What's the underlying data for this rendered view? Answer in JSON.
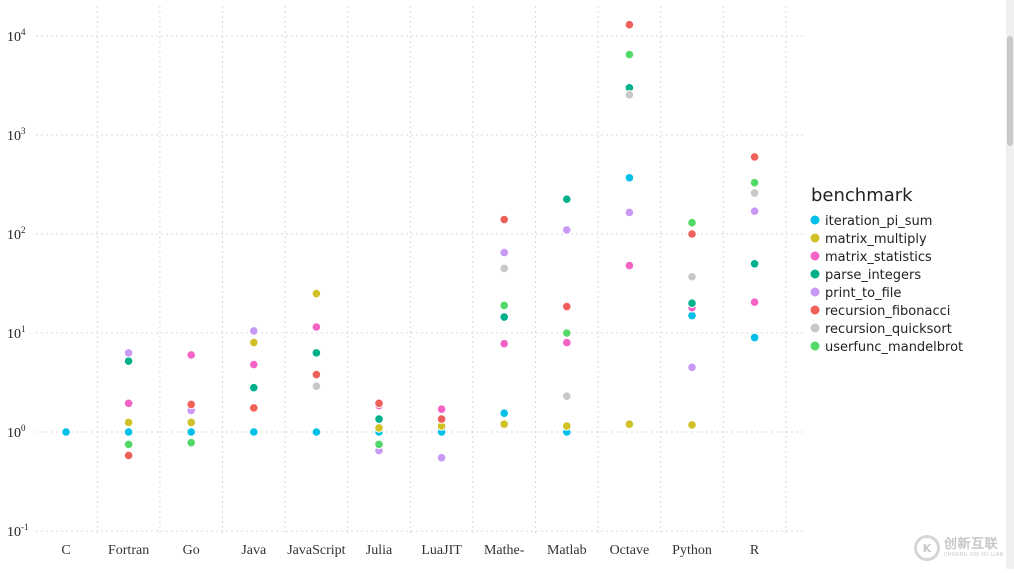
{
  "chart_data": {
    "type": "scatter",
    "title": "",
    "xlabel": "",
    "ylabel": "",
    "y_scale": "log",
    "ylim": [
      0.1,
      10000
    ],
    "y_ticks": [
      {
        "value": 0.1,
        "base": "10",
        "exp": "-1"
      },
      {
        "value": 1,
        "base": "10",
        "exp": "0"
      },
      {
        "value": 10,
        "base": "10",
        "exp": "1"
      },
      {
        "value": 100,
        "base": "10",
        "exp": "2"
      },
      {
        "value": 1000,
        "base": "10",
        "exp": "3"
      },
      {
        "value": 10000,
        "base": "10",
        "exp": "4"
      }
    ],
    "categories": [
      "C",
      "Fortran",
      "Go",
      "Java",
      "JavaScript",
      "Julia",
      "LuaJIT",
      "Mathe-",
      "Matlab",
      "Octave",
      "Python",
      "R"
    ],
    "grid": true,
    "legend": {
      "title": "benchmark",
      "position": "right"
    },
    "series": [
      {
        "name": "iteration_pi_sum",
        "color": "#00BFE8",
        "values": [
          1.0,
          1.0,
          1.0,
          1.0,
          1.0,
          1.0,
          1.0,
          1.55,
          1.0,
          370,
          15,
          9
        ]
      },
      {
        "name": "matrix_multiply",
        "color": "#CFC126",
        "values": [
          null,
          1.25,
          1.25,
          8,
          25,
          1.1,
          1.15,
          1.2,
          1.15,
          1.2,
          1.18,
          null
        ]
      },
      {
        "name": "matrix_statistics",
        "color": "#F564C5",
        "values": [
          null,
          1.95,
          6,
          4.8,
          11.5,
          1.85,
          1.7,
          7.8,
          8,
          48,
          18,
          20.5
        ]
      },
      {
        "name": "parse_integers",
        "color": "#00B08A",
        "values": [
          null,
          5.2,
          null,
          2.8,
          6.3,
          1.35,
          null,
          14.5,
          225,
          3000,
          20,
          50
        ]
      },
      {
        "name": "print_to_file",
        "color": "#C99AF5",
        "values": [
          null,
          6.3,
          1.65,
          10.5,
          null,
          0.65,
          0.55,
          65,
          110,
          165,
          4.5,
          170
        ]
      },
      {
        "name": "recursion_fibonacci",
        "color": "#F0605A",
        "values": [
          null,
          0.58,
          1.9,
          1.75,
          3.8,
          1.95,
          1.35,
          140,
          18.5,
          13000,
          100,
          600
        ]
      },
      {
        "name": "recursion_quicksort",
        "color": "#C8C8C8",
        "values": [
          null,
          null,
          null,
          null,
          2.9,
          null,
          null,
          45,
          2.3,
          2550,
          37,
          260
        ]
      },
      {
        "name": "userfunc_mandelbrot",
        "color": "#52D867",
        "values": [
          null,
          0.75,
          0.78,
          null,
          null,
          0.75,
          null,
          19,
          10,
          6500,
          130,
          330
        ]
      }
    ]
  },
  "watermark": {
    "mark": "K",
    "text": "创新互联",
    "sub": "CHUANG XIN HU LIAN"
  }
}
